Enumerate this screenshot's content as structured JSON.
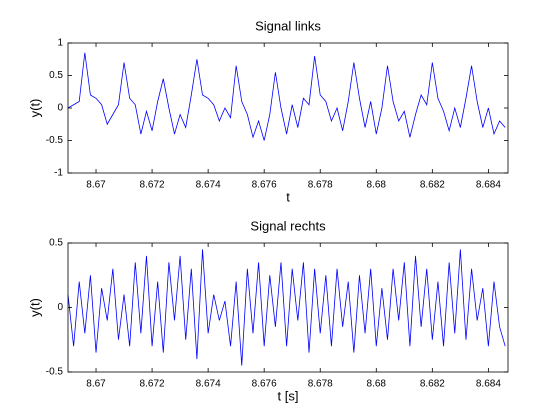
{
  "chart_data": [
    {
      "type": "line",
      "title": "Signal links",
      "xlabel": "t",
      "ylabel": "y(t)",
      "color": "#0000ff",
      "xlim": [
        8.669,
        8.6847
      ],
      "ylim": [
        -1,
        1
      ],
      "xticks": [
        8.67,
        8.672,
        8.674,
        8.676,
        8.678,
        8.68,
        8.682,
        8.684
      ],
      "yticks": [
        -1,
        -0.5,
        0,
        0.5,
        1
      ],
      "x": [
        8.669,
        8.6692,
        8.6694,
        8.6696,
        8.6698,
        8.67,
        8.6702,
        8.6704,
        8.6706,
        8.6708,
        8.671,
        8.6712,
        8.6714,
        8.6716,
        8.6718,
        8.672,
        8.6722,
        8.6724,
        8.6726,
        8.6728,
        8.673,
        8.6732,
        8.6734,
        8.6736,
        8.6738,
        8.674,
        8.6742,
        8.6744,
        8.6746,
        8.6748,
        8.675,
        8.6752,
        8.6754,
        8.6756,
        8.6758,
        8.676,
        8.6762,
        8.6764,
        8.6766,
        8.6768,
        8.677,
        8.6772,
        8.6774,
        8.6776,
        8.6778,
        8.678,
        8.6782,
        8.6784,
        8.6786,
        8.6788,
        8.679,
        8.6792,
        8.6794,
        8.6796,
        8.6798,
        8.68,
        8.6802,
        8.6804,
        8.6806,
        8.6808,
        8.681,
        8.6812,
        8.6814,
        8.6816,
        8.6818,
        8.682,
        8.6822,
        8.6824,
        8.6826,
        8.6828,
        8.683,
        8.6832,
        8.6834,
        8.6836,
        8.6838,
        8.684,
        8.6842,
        8.6844,
        8.6846
      ],
      "values": [
        0.0,
        0.05,
        0.1,
        0.85,
        0.2,
        0.15,
        0.05,
        -0.25,
        -0.1,
        0.05,
        0.7,
        0.15,
        0.05,
        -0.4,
        -0.05,
        -0.35,
        0.1,
        0.45,
        0.0,
        -0.4,
        -0.1,
        -0.3,
        0.2,
        0.75,
        0.2,
        0.15,
        0.05,
        -0.2,
        0.0,
        -0.15,
        0.65,
        0.1,
        -0.1,
        -0.45,
        -0.2,
        -0.5,
        -0.1,
        0.55,
        0.0,
        -0.4,
        0.05,
        -0.3,
        0.15,
        0.05,
        0.8,
        0.2,
        0.1,
        -0.2,
        0.0,
        -0.35,
        0.1,
        0.7,
        0.15,
        -0.3,
        0.1,
        -0.4,
        0.0,
        0.65,
        0.1,
        -0.2,
        -0.05,
        -0.45,
        -0.1,
        0.2,
        0.05,
        0.7,
        0.15,
        -0.05,
        -0.35,
        0.0,
        -0.3,
        0.15,
        0.65,
        0.1,
        -0.3,
        0.0,
        -0.4,
        -0.2,
        -0.3
      ]
    },
    {
      "type": "line",
      "title": "Signal rechts",
      "xlabel": "t [s]",
      "ylabel": "y(t)",
      "color": "#0000ff",
      "xlim": [
        8.669,
        8.6847
      ],
      "ylim": [
        -0.5,
        0.5
      ],
      "xticks": [
        8.67,
        8.672,
        8.674,
        8.676,
        8.678,
        8.68,
        8.682,
        8.684
      ],
      "yticks": [
        -0.5,
        0,
        0.5
      ],
      "x": [
        8.669,
        8.6692,
        8.6694,
        8.6696,
        8.6698,
        8.67,
        8.6702,
        8.6704,
        8.6706,
        8.6708,
        8.671,
        8.6712,
        8.6714,
        8.6716,
        8.6718,
        8.672,
        8.6722,
        8.6724,
        8.6726,
        8.6728,
        8.673,
        8.6732,
        8.6734,
        8.6736,
        8.6738,
        8.674,
        8.6742,
        8.6744,
        8.6746,
        8.6748,
        8.675,
        8.6752,
        8.6754,
        8.6756,
        8.6758,
        8.676,
        8.6762,
        8.6764,
        8.6766,
        8.6768,
        8.677,
        8.6772,
        8.6774,
        8.6776,
        8.6778,
        8.678,
        8.6782,
        8.6784,
        8.6786,
        8.6788,
        8.679,
        8.6792,
        8.6794,
        8.6796,
        8.6798,
        8.68,
        8.6802,
        8.6804,
        8.6806,
        8.6808,
        8.681,
        8.6812,
        8.6814,
        8.6816,
        8.6818,
        8.682,
        8.6822,
        8.6824,
        8.6826,
        8.6828,
        8.683,
        8.6832,
        8.6834,
        8.6836,
        8.6838,
        8.684,
        8.6842,
        8.6844,
        8.6846
      ],
      "values": [
        0.1,
        -0.3,
        0.2,
        -0.2,
        0.25,
        -0.35,
        0.15,
        -0.1,
        0.3,
        -0.25,
        0.1,
        -0.3,
        0.35,
        -0.2,
        0.4,
        -0.3,
        0.2,
        -0.35,
        0.35,
        -0.1,
        0.4,
        -0.25,
        0.3,
        -0.4,
        0.45,
        -0.2,
        0.1,
        -0.1,
        0.05,
        -0.3,
        0.2,
        -0.45,
        0.3,
        -0.2,
        0.35,
        -0.3,
        0.25,
        -0.15,
        0.35,
        -0.3,
        0.3,
        -0.1,
        0.35,
        -0.35,
        0.3,
        -0.2,
        0.25,
        -0.3,
        0.3,
        -0.15,
        0.2,
        -0.35,
        0.25,
        -0.2,
        0.3,
        -0.3,
        0.15,
        -0.25,
        0.3,
        -0.1,
        0.35,
        -0.3,
        0.4,
        -0.15,
        0.3,
        -0.25,
        0.2,
        -0.3,
        0.35,
        -0.2,
        0.45,
        -0.25,
        0.3,
        -0.1,
        0.15,
        -0.3,
        0.2,
        -0.15,
        -0.3
      ]
    }
  ]
}
